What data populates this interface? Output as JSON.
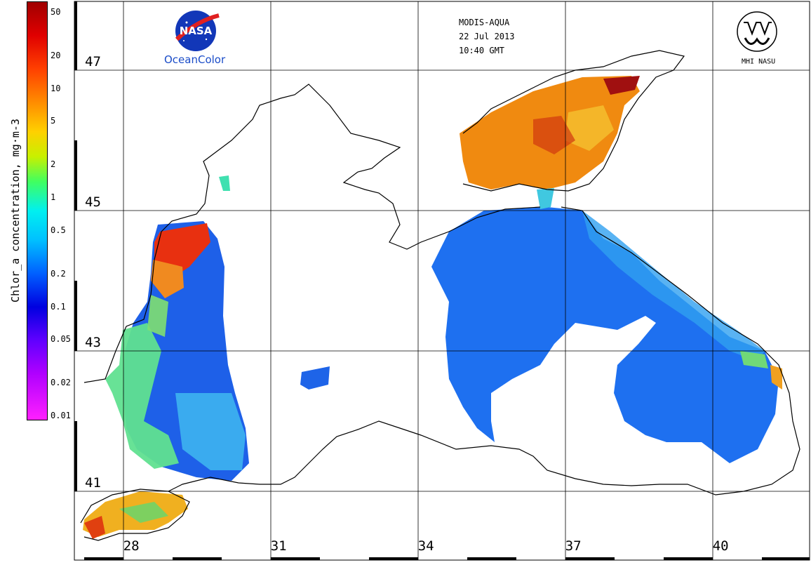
{
  "header": {
    "sensor": "MODIS-AQUA",
    "date": "22 Jul 2013",
    "time": "10:40 GMT"
  },
  "logos": {
    "nasa_mark": "NASA",
    "nasa_caption": "OceanColor",
    "mhi_caption": "MHI NASU"
  },
  "colorbar": {
    "title": "Chlor_a concentration, mg·m-3",
    "ticks": [
      {
        "label": "50",
        "value": 50
      },
      {
        "label": "20",
        "value": 20
      },
      {
        "label": "10",
        "value": 10
      },
      {
        "label": "5",
        "value": 5
      },
      {
        "label": "2",
        "value": 2
      },
      {
        "label": "1",
        "value": 1
      },
      {
        "label": "0.5",
        "value": 0.5
      },
      {
        "label": "0.2",
        "value": 0.2
      },
      {
        "label": "0.1",
        "value": 0.1
      },
      {
        "label": "0.05",
        "value": 0.05
      },
      {
        "label": "0.02",
        "value": 0.02
      },
      {
        "label": "0.01",
        "value": 0.01
      }
    ],
    "scale": "log",
    "colors": [
      "#a00000",
      "#ff8c00",
      "#ffd000",
      "#40ff60",
      "#00f0f0",
      "#0060ff",
      "#0000e0",
      "#b000ff",
      "#ff20ff"
    ]
  },
  "grid": {
    "latitudes": [
      {
        "label": "47",
        "value": 47
      },
      {
        "label": "45",
        "value": 45
      },
      {
        "label": "43",
        "value": 43
      },
      {
        "label": "41",
        "value": 41
      }
    ],
    "longitudes": [
      {
        "label": "28",
        "value": 28
      },
      {
        "label": "31",
        "value": 31
      },
      {
        "label": "34",
        "value": 34
      },
      {
        "label": "37",
        "value": 37
      },
      {
        "label": "40",
        "value": 40
      }
    ]
  },
  "colors": {
    "coastline": "#000000",
    "land": "#ffffff",
    "low_chl": "#1e6cf0",
    "high_chl": "#f05a00"
  }
}
